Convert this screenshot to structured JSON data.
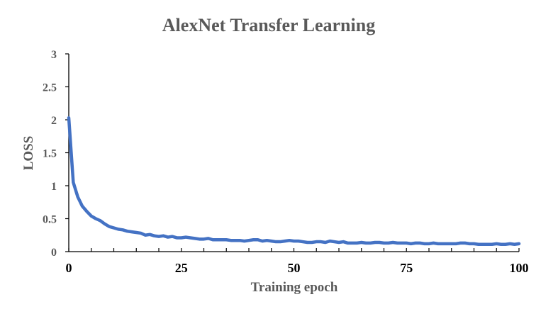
{
  "chart_data": {
    "type": "line",
    "title": "AlexNet Transfer Learning",
    "xlabel": "Training epoch",
    "ylabel": "LOSS",
    "xlim": [
      0,
      100
    ],
    "ylim": [
      0,
      3
    ],
    "x_ticks": [
      "0",
      "25",
      "50",
      "75",
      "100"
    ],
    "y_ticks": [
      "0",
      "0.5",
      "1",
      "1.5",
      "2",
      "2.5",
      "3"
    ],
    "grid": false,
    "legend": "none",
    "series": [
      {
        "color": "#4472C4",
        "x": [
          0,
          1,
          2,
          3,
          4,
          5,
          6,
          7,
          8,
          9,
          10,
          11,
          12,
          13,
          14,
          15,
          16,
          17,
          18,
          19,
          20,
          21,
          22,
          23,
          24,
          25,
          26,
          27,
          28,
          29,
          30,
          31,
          32,
          33,
          34,
          35,
          36,
          37,
          38,
          39,
          40,
          41,
          42,
          43,
          44,
          45,
          46,
          47,
          48,
          49,
          50,
          51,
          52,
          53,
          54,
          55,
          56,
          57,
          58,
          59,
          60,
          61,
          62,
          63,
          64,
          65,
          66,
          67,
          68,
          69,
          70,
          71,
          72,
          73,
          74,
          75,
          76,
          77,
          78,
          79,
          80,
          81,
          82,
          83,
          84,
          85,
          86,
          87,
          88,
          89,
          90,
          91,
          92,
          93,
          94,
          95,
          96,
          97,
          98,
          99,
          100
        ],
        "values": [
          2.03,
          1.05,
          0.83,
          0.69,
          0.61,
          0.54,
          0.5,
          0.47,
          0.42,
          0.38,
          0.36,
          0.34,
          0.33,
          0.31,
          0.3,
          0.29,
          0.28,
          0.25,
          0.26,
          0.24,
          0.23,
          0.24,
          0.22,
          0.23,
          0.21,
          0.21,
          0.22,
          0.21,
          0.2,
          0.19,
          0.19,
          0.2,
          0.18,
          0.18,
          0.18,
          0.18,
          0.17,
          0.17,
          0.17,
          0.16,
          0.17,
          0.18,
          0.18,
          0.16,
          0.17,
          0.16,
          0.15,
          0.15,
          0.16,
          0.17,
          0.16,
          0.16,
          0.15,
          0.14,
          0.14,
          0.15,
          0.15,
          0.14,
          0.16,
          0.15,
          0.14,
          0.15,
          0.13,
          0.13,
          0.13,
          0.14,
          0.13,
          0.13,
          0.14,
          0.14,
          0.13,
          0.13,
          0.14,
          0.13,
          0.13,
          0.13,
          0.12,
          0.13,
          0.13,
          0.12,
          0.12,
          0.13,
          0.12,
          0.12,
          0.12,
          0.12,
          0.12,
          0.13,
          0.13,
          0.12,
          0.12,
          0.11,
          0.11,
          0.11,
          0.11,
          0.12,
          0.11,
          0.11,
          0.12,
          0.11,
          0.12
        ]
      }
    ]
  }
}
